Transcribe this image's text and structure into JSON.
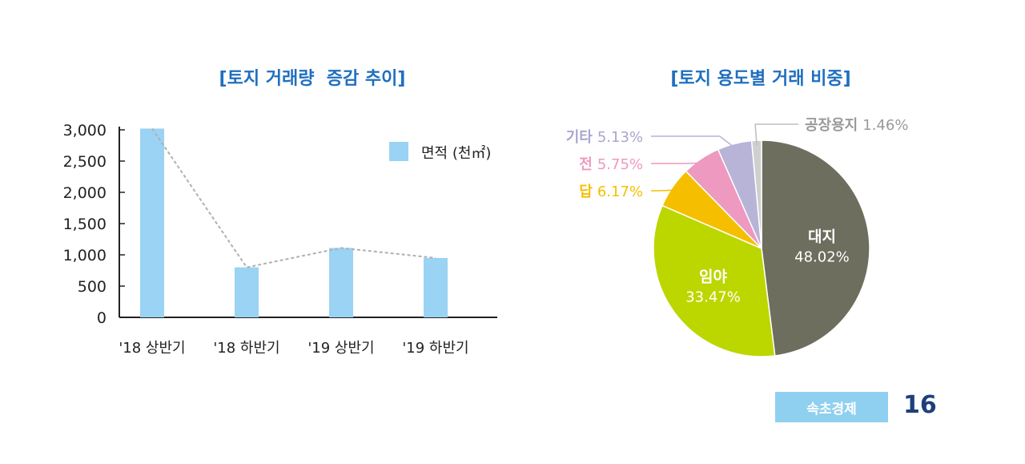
{
  "chart_data": [
    {
      "type": "bar",
      "title": "[토지 거래량  증감 추이]",
      "categories": [
        "'18 상반기",
        "'18 하반기",
        "'19 상반기",
        "'19 하반기"
      ],
      "series": [
        {
          "name": "면적 (천㎡)",
          "values": [
            3020,
            800,
            1110,
            950
          ],
          "color": "#9ad3f3"
        }
      ],
      "trend_line": true,
      "ylim": [
        0,
        3000
      ],
      "yticks": [
        "3,000",
        "2,500",
        "2,000",
        "1,500",
        "1,000",
        "500",
        "0"
      ],
      "ytick_values": [
        3000,
        2500,
        2000,
        1500,
        1000,
        500,
        0
      ],
      "legend_position": "top-right",
      "grid": false
    },
    {
      "type": "pie",
      "title": "[토지 용도별 거래 비중]",
      "slices": [
        {
          "name": "대지",
          "value": 48.02,
          "label": "48.02%",
          "color": "#6d6e5d"
        },
        {
          "name": "임야",
          "value": 33.47,
          "label": "33.47%",
          "color": "#bcd600"
        },
        {
          "name": "답",
          "value": 6.17,
          "label": "6.17%",
          "color": "#f5bf00"
        },
        {
          "name": "전",
          "value": 5.75,
          "label": "5.75%",
          "color": "#ee99bf"
        },
        {
          "name": "기타",
          "value": 5.13,
          "label": "5.13%",
          "color": "#b7b4d8"
        },
        {
          "name": "공장용지",
          "value": 1.46,
          "label": "1.46%",
          "color": "#cfcfcf"
        }
      ]
    }
  ],
  "footer": {
    "badge": "속초경제",
    "page_number": "16"
  }
}
